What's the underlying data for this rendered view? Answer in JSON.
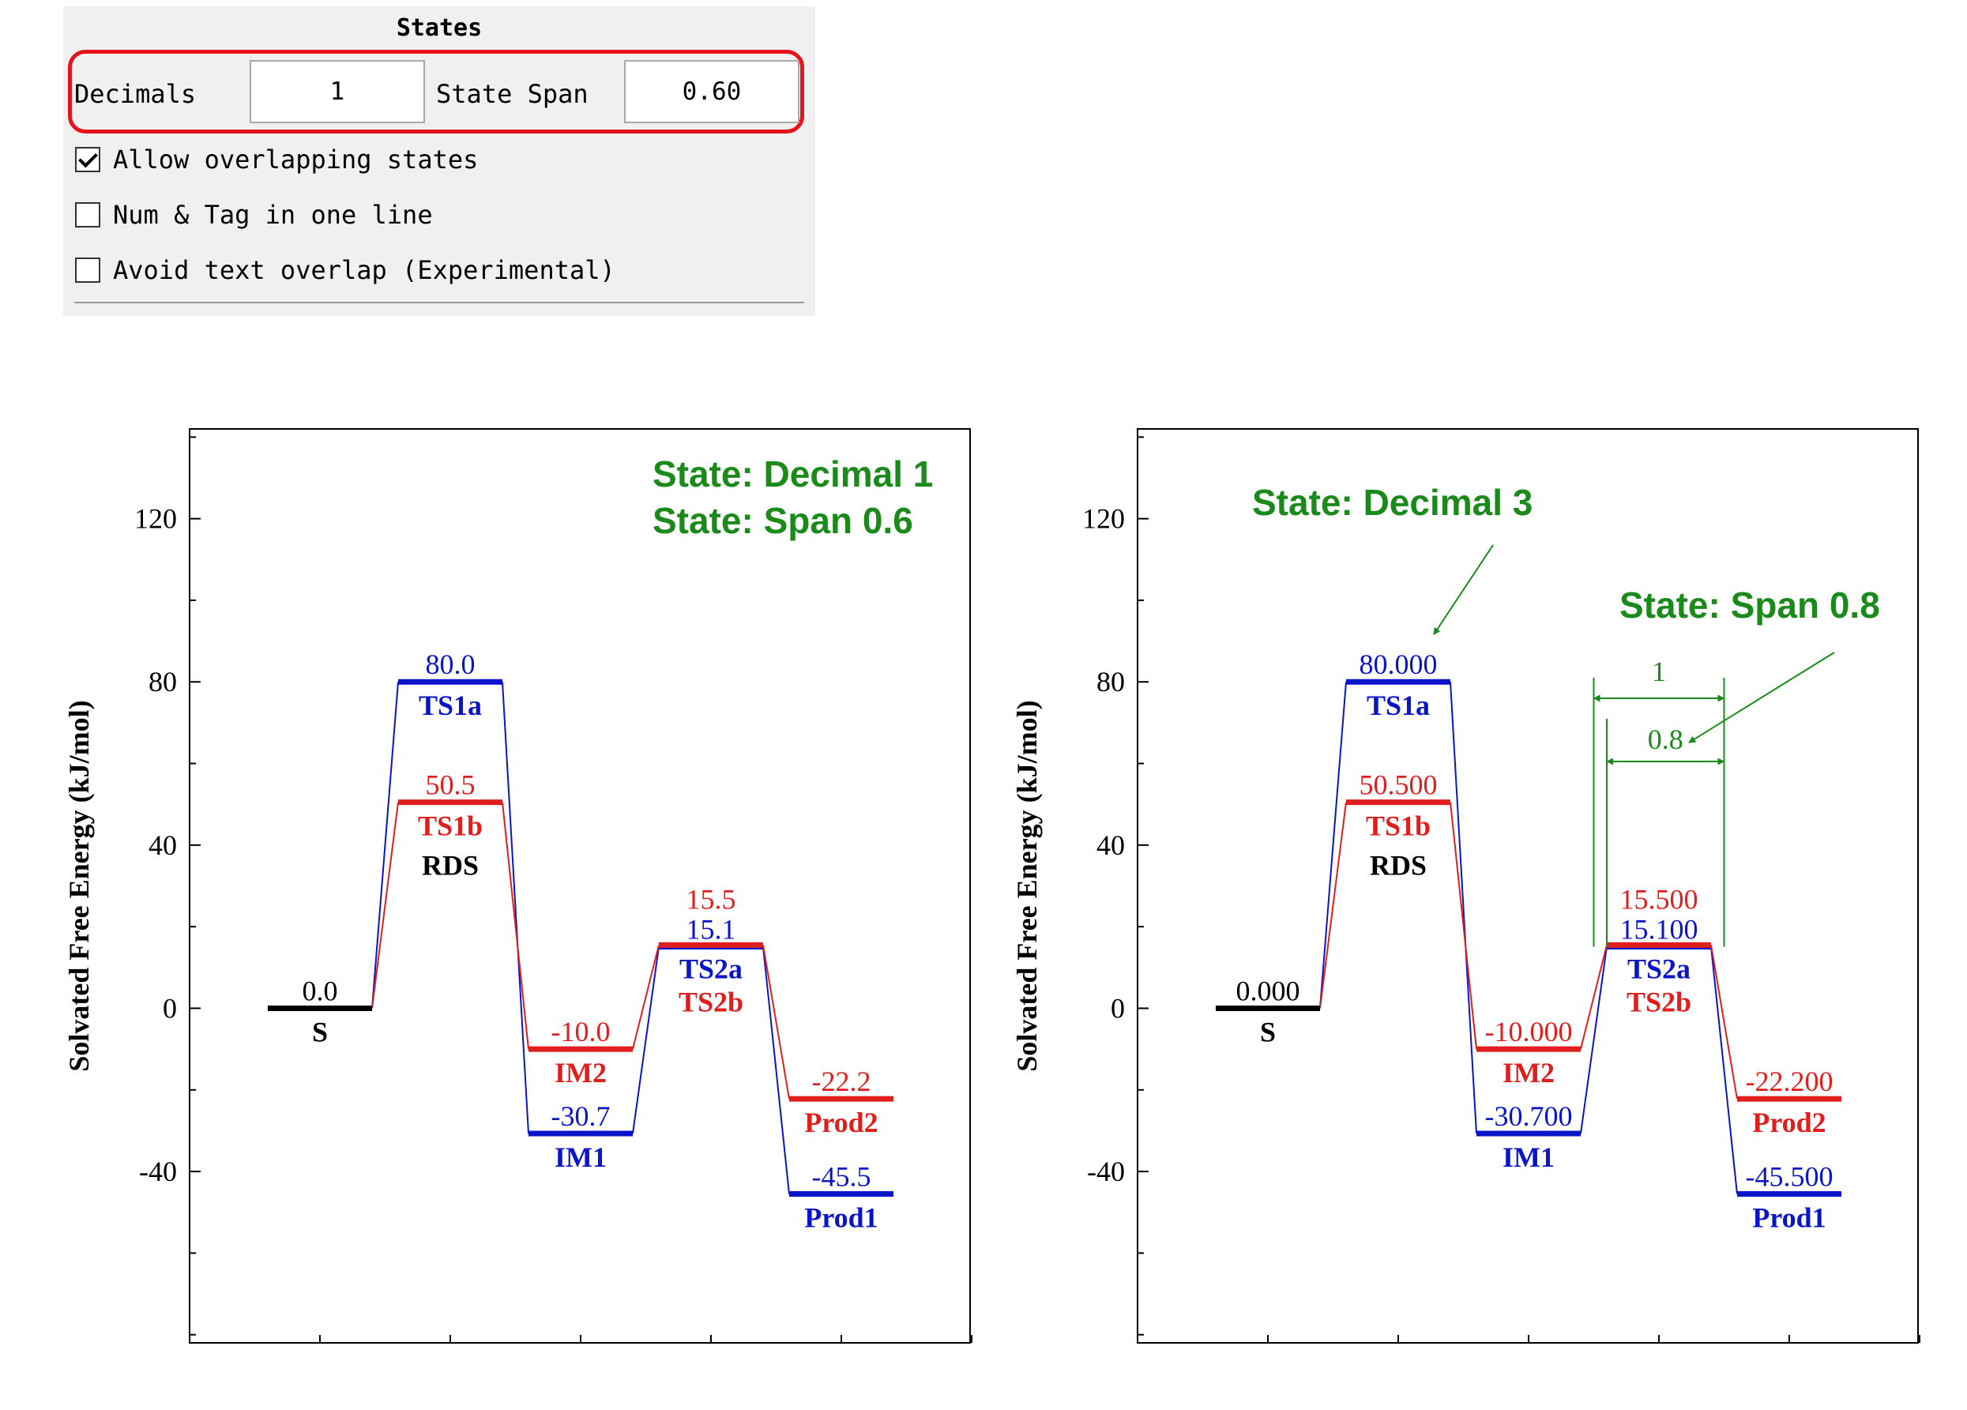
{
  "panel": {
    "title": "States",
    "decimals_label": "Decimals",
    "decimals_value": "1",
    "span_label": "State Span",
    "span_value": "0.60",
    "options": [
      {
        "label": "Allow overlapping states",
        "checked": true
      },
      {
        "label": "Num & Tag in one line",
        "checked": false
      },
      {
        "label": "Avoid text overlap (Experimental)",
        "checked": false
      }
    ]
  },
  "colors": {
    "blue": "#0a14c8",
    "red": "#e01e1e",
    "black": "#000000",
    "green": "#1a8a1a",
    "highlight": "#e8131a"
  },
  "chart_data": [
    {
      "type": "energy-profile",
      "ylabel": "Solvated Free Energy (kJ/mol)",
      "ylim": [
        -82,
        142
      ],
      "yticks": [
        -40,
        0,
        40,
        80,
        120
      ],
      "annotations": [
        "State: Decimal 1",
        "State: Span 0.6"
      ],
      "states": [
        {
          "name": "S",
          "x": 1,
          "value": "0.0",
          "y": 0,
          "color": "black"
        },
        {
          "name": "TS1a",
          "x": 2,
          "value": "80.0",
          "y": 80,
          "color": "blue"
        },
        {
          "name": "TS1b",
          "x": 2,
          "value": "50.5",
          "y": 50.5,
          "color": "red",
          "sublabel": "RDS"
        },
        {
          "name": "IM2",
          "x": 3,
          "value": "-10.0",
          "y": -10,
          "color": "red"
        },
        {
          "name": "IM1",
          "x": 3,
          "value": "-30.7",
          "y": -30.7,
          "color": "blue"
        },
        {
          "name": "TS2a",
          "x": 4,
          "value": "15.1",
          "y": 15.1,
          "color": "blue"
        },
        {
          "name": "TS2b",
          "x": 4,
          "value": "15.5",
          "y": 15.5,
          "color": "red"
        },
        {
          "name": "Prod2",
          "x": 5,
          "value": "-22.2",
          "y": -22.2,
          "color": "red"
        },
        {
          "name": "Prod1",
          "x": 5,
          "value": "-45.5",
          "y": -45.5,
          "color": "blue"
        }
      ]
    },
    {
      "type": "energy-profile",
      "ylabel": "Solvated Free Energy (kJ/mol)",
      "ylim": [
        -82,
        142
      ],
      "yticks": [
        -40,
        0,
        40,
        80,
        120
      ],
      "annotations": [
        "State: Decimal 3",
        "State: Span 0.8"
      ],
      "dimension_labels": [
        "1",
        "0.8"
      ],
      "states": [
        {
          "name": "S",
          "x": 1,
          "value": "0.000",
          "y": 0,
          "color": "black"
        },
        {
          "name": "TS1a",
          "x": 2,
          "value": "80.000",
          "y": 80,
          "color": "blue"
        },
        {
          "name": "TS1b",
          "x": 2,
          "value": "50.500",
          "y": 50.5,
          "color": "red",
          "sublabel": "RDS"
        },
        {
          "name": "IM2",
          "x": 3,
          "value": "-10.000",
          "y": -10,
          "color": "red"
        },
        {
          "name": "IM1",
          "x": 3,
          "value": "-30.700",
          "y": -30.7,
          "color": "blue"
        },
        {
          "name": "TS2a",
          "x": 4,
          "value": "15.100",
          "y": 15.1,
          "color": "blue"
        },
        {
          "name": "TS2b",
          "x": 4,
          "value": "15.500",
          "y": 15.5,
          "color": "red"
        },
        {
          "name": "Prod2",
          "x": 5,
          "value": "-22.200",
          "y": -22.2,
          "color": "red"
        },
        {
          "name": "Prod1",
          "x": 5,
          "value": "-45.500",
          "y": -45.5,
          "color": "blue"
        }
      ]
    }
  ]
}
